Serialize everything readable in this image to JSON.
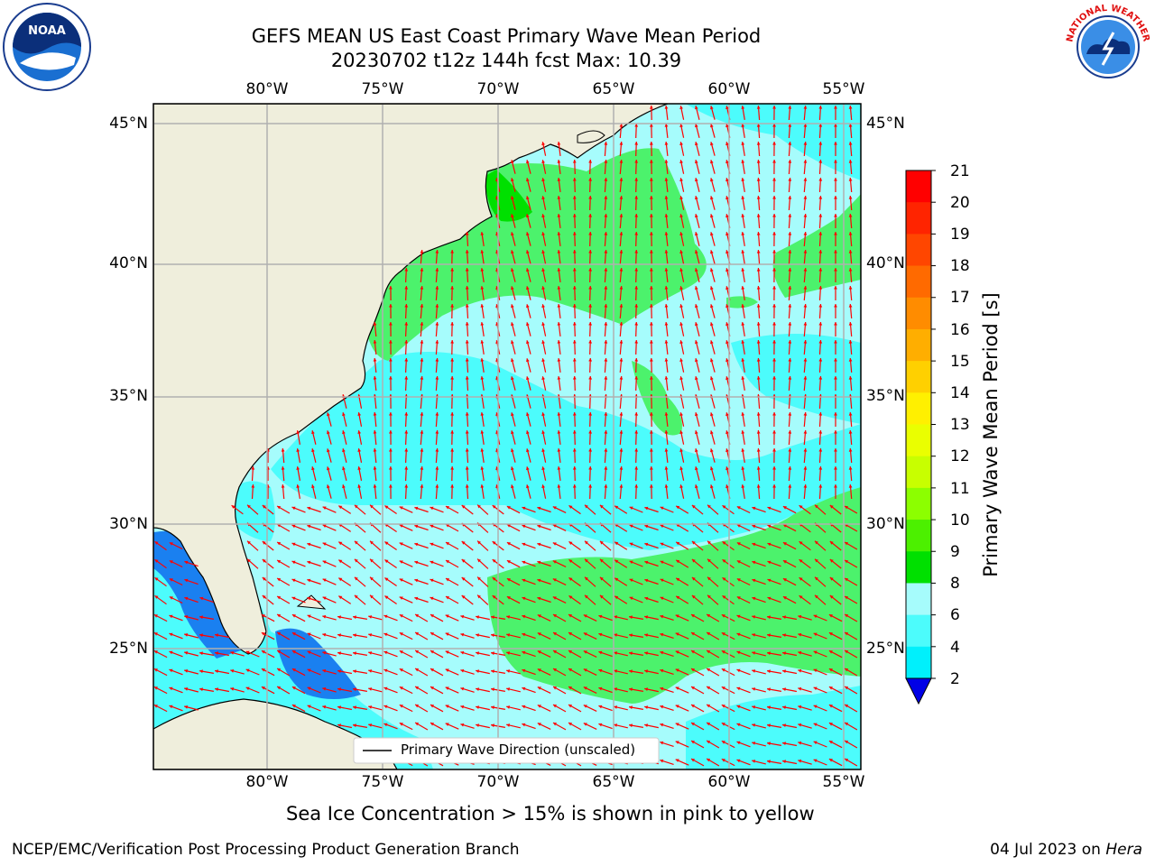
{
  "title": {
    "line1": "GEFS MEAN US East Coast Primary Wave Mean Period",
    "line2": "20230702 t12z 144h fcst   Max: 10.39"
  },
  "axes": {
    "lon_labels": [
      "80°W",
      "75°W",
      "70°W",
      "65°W",
      "60°W",
      "55°W"
    ],
    "lat_labels": [
      "45°N",
      "40°N",
      "35°N",
      "30°N",
      "25°N"
    ]
  },
  "colorbar": {
    "label": "Primary Wave Mean Period [s]",
    "ticks": [
      "21",
      "20",
      "19",
      "18",
      "17",
      "16",
      "15",
      "14",
      "13",
      "12",
      "11",
      "10",
      "9",
      "8",
      "6",
      "4",
      "2"
    ],
    "colors": [
      "#ff0000",
      "#ff2400",
      "#ff4600",
      "#ff6a00",
      "#ff8c00",
      "#ffae00",
      "#ffd000",
      "#fff000",
      "#eaff00",
      "#c8ff00",
      "#8cff00",
      "#4cf000",
      "#00e000",
      "#4cf26c",
      "#a6fcfc",
      "#4cfcfc",
      "#00f0fc",
      "#0a8cff"
    ],
    "extend_color": "#0000e6"
  },
  "legend": {
    "label": "Primary Wave Direction (unscaled)"
  },
  "subtitle": "Sea Ice Concentration > 15% is shown in pink to yellow",
  "footer": {
    "left": "NCEP/EMC/Verification Post Processing Product Generation Branch",
    "right_date": "04 Jul 2023 on ",
    "right_host": "Hera"
  },
  "logos": {
    "left": "NOAA",
    "right": "NATIONAL WEATHER SERVICE"
  },
  "colors": {
    "land": "#efeedc",
    "grid": "#b0b0b0",
    "arrow": "#ff0000"
  }
}
